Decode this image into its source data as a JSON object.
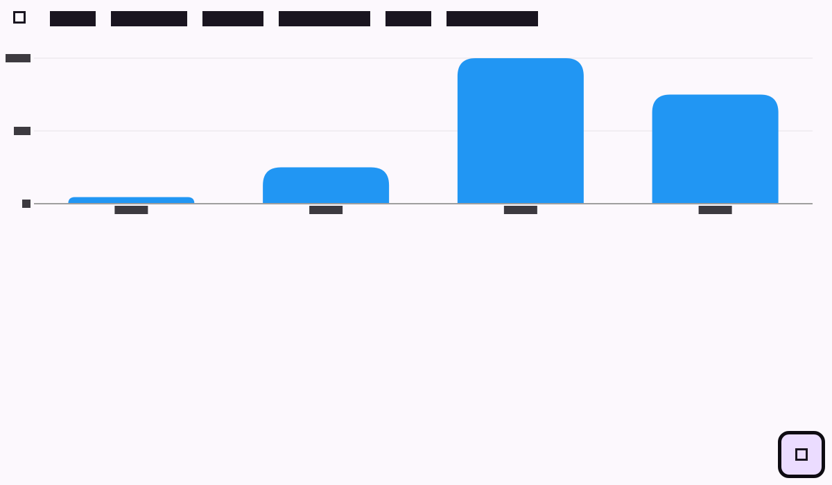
{
  "menu": {
    "items": [
      {
        "label": ""
      },
      {
        "label": ""
      },
      {
        "label": ""
      },
      {
        "label": ""
      },
      {
        "label": ""
      },
      {
        "label": ""
      }
    ]
  },
  "colors": {
    "bar": "#2196f3",
    "axis": "#9e9e9e",
    "grid": "#e6e2e8",
    "redacted_block": "#1a1520",
    "fab_background": "#ebdcff"
  },
  "icons": {
    "menu": "square-icon",
    "fab": "square-icon"
  },
  "chart_data": {
    "type": "bar",
    "categories": [
      "",
      "",
      "",
      ""
    ],
    "values": [
      0.9,
      5,
      20,
      15
    ],
    "ylim": [
      0,
      20
    ],
    "yticks": [
      0,
      10,
      20
    ],
    "ytick_labels": [
      "",
      "",
      ""
    ],
    "title": "",
    "xlabel": "",
    "ylabel": "",
    "grid": true
  }
}
